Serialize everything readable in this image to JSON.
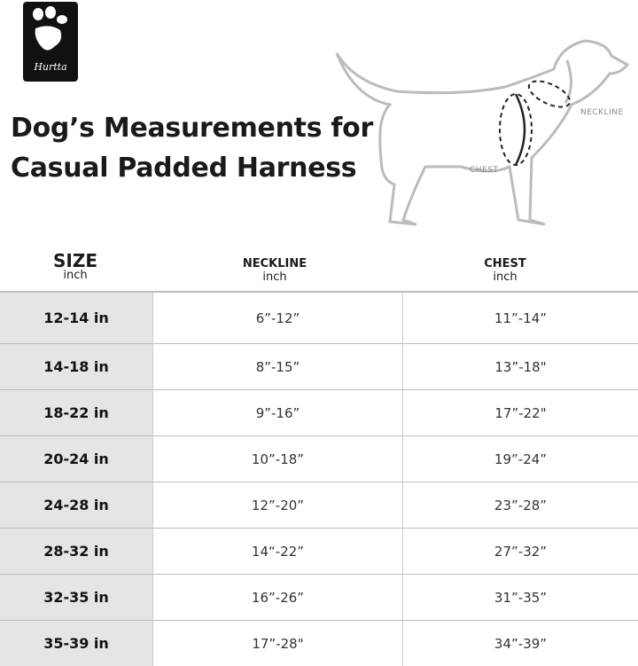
{
  "brand": {
    "logo_text": "Hurtta"
  },
  "title": {
    "line1": "Dog’s Measurements for",
    "line2": "Casual Padded Harness"
  },
  "illustration": {
    "neckline_label": "NECKLINE",
    "chest_label": "CHEST"
  },
  "table": {
    "headers": [
      {
        "main": "SIZE",
        "sub": "inch"
      },
      {
        "main": "NECKLINE",
        "sub": "inch"
      },
      {
        "main": "CHEST",
        "sub": "inch"
      }
    ],
    "rows": [
      {
        "size": "12-14 in",
        "neckline": "6”-12”",
        "chest": "11”-14”"
      },
      {
        "size": "14-18 in",
        "neckline": "8”-15”",
        "chest": "13”-18\""
      },
      {
        "size": "18-22 in",
        "neckline": "9”-16”",
        "chest": "17”-22\""
      },
      {
        "size": "20-24 in",
        "neckline": "10”-18”",
        "chest": "19”-24”"
      },
      {
        "size": "24-28 in",
        "neckline": "12”-20”",
        "chest": "23”-28”"
      },
      {
        "size": "28-32 in",
        "neckline": "14“-22”",
        "chest": "27”-32”"
      },
      {
        "size": "32-35 in",
        "neckline": "16”-26”",
        "chest": "31”-35”"
      },
      {
        "size": "35-39 in",
        "neckline": "17”-28\"",
        "chest": "34”-39”"
      }
    ]
  }
}
